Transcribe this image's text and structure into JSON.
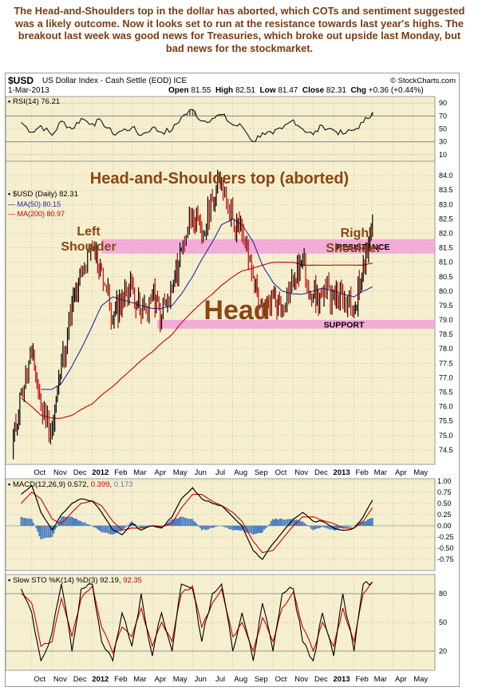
{
  "caption": "The Head-and-Shoulders top in the dollar has aborted, which COTs and sentiment suggested was a likely outcome. Now it looks set to run at the resistance towards last year's highs. The breakout last week was good news for Treasuries, which broke out upside last Monday, but bad news for the stockmarket.",
  "header": {
    "symbol": "$USD",
    "description": "US Dollar Index - Cash Settle (EOD) ICE",
    "source": "© StockCharts.com",
    "date": "1-Mar-2013",
    "open_label": "Open",
    "open": "81.55",
    "high_label": "High",
    "high": "82.51",
    "low_label": "Low",
    "low": "81.47",
    "close_label": "Close",
    "close": "82.31",
    "chg_label": "Chg",
    "chg": "+0.36 (+0.44%)"
  },
  "colors": {
    "panel_bg": "#f6efcf",
    "caption": "#7a3b10",
    "annotation": "#8b4513",
    "band": "#f2a0d8",
    "price_up": "#000000",
    "price_down": "#cc0000",
    "ma50": "#1f2f9f",
    "ma200": "#cc0000",
    "histogram": "#4a7fc0"
  },
  "chart_data": [
    {
      "type": "line",
      "panel": "rsi",
      "label": "RSI(14)",
      "value": "76.21",
      "y_ticks": [
        "90",
        "70",
        "50",
        "30",
        "10"
      ],
      "ylim": [
        0,
        100
      ],
      "x": [
        "2011-09-15",
        "2011-10-01",
        "2011-10-15",
        "2011-11-01",
        "2011-11-15",
        "2011-12-01",
        "2011-12-15",
        "2012-01-01",
        "2012-01-15",
        "2012-02-01",
        "2012-02-15",
        "2012-03-01",
        "2012-03-15",
        "2012-04-01",
        "2012-04-15",
        "2012-05-01",
        "2012-05-15",
        "2012-06-01",
        "2012-06-15",
        "2012-07-01",
        "2012-07-15",
        "2012-08-01",
        "2012-08-15",
        "2012-09-01",
        "2012-09-15",
        "2012-10-01",
        "2012-10-15",
        "2012-11-01",
        "2012-11-15",
        "2012-12-01",
        "2012-12-15",
        "2013-01-01",
        "2013-01-15",
        "2013-02-01",
        "2013-02-15",
        "2013-03-01"
      ],
      "values": [
        60,
        45,
        55,
        40,
        62,
        50,
        66,
        58,
        62,
        42,
        47,
        52,
        40,
        52,
        45,
        48,
        68,
        80,
        62,
        66,
        72,
        56,
        54,
        30,
        44,
        42,
        50,
        64,
        50,
        41,
        55,
        48,
        42,
        48,
        60,
        76
      ]
    },
    {
      "type": "line",
      "panel": "price",
      "title": "Head-and-Shoulders top (aborted)",
      "label": "$USD (Daily)",
      "value": "82.31",
      "y_ticks": [
        "84.0",
        "83.5",
        "83.0",
        "82.5",
        "82.0",
        "81.5",
        "81.0",
        "80.5",
        "80.0",
        "79.5",
        "79.0",
        "78.5",
        "78.0",
        "77.5",
        "77.0",
        "76.5",
        "76.0",
        "75.5",
        "75.0",
        "74.5"
      ],
      "ylim": [
        74.0,
        84.5
      ],
      "x": [
        "2011-09-01",
        "2011-09-15",
        "2011-10-01",
        "2011-10-15",
        "2011-11-01",
        "2011-11-15",
        "2011-12-01",
        "2011-12-15",
        "2012-01-01",
        "2012-01-15",
        "2012-02-01",
        "2012-02-15",
        "2012-03-01",
        "2012-03-15",
        "2012-04-01",
        "2012-04-15",
        "2012-05-01",
        "2012-05-15",
        "2012-06-01",
        "2012-06-15",
        "2012-07-01",
        "2012-07-15",
        "2012-08-01",
        "2012-08-15",
        "2012-09-01",
        "2012-09-15",
        "2012-10-01",
        "2012-10-15",
        "2012-11-01",
        "2012-11-15",
        "2012-12-01",
        "2012-12-15",
        "2013-01-01",
        "2013-01-15",
        "2013-02-01",
        "2013-02-15",
        "2013-03-01"
      ],
      "series": [
        {
          "name": "$USD (Daily)",
          "values": [
            74.5,
            76.5,
            77.8,
            76.0,
            75.2,
            77.5,
            79.5,
            80.5,
            81.4,
            80.8,
            79.0,
            79.8,
            80.2,
            79.2,
            79.8,
            79.2,
            80.0,
            81.5,
            82.8,
            81.8,
            83.2,
            83.8,
            82.5,
            82.0,
            80.5,
            79.2,
            79.8,
            79.5,
            80.3,
            81.0,
            79.8,
            79.8,
            80.0,
            79.6,
            79.3,
            81.0,
            82.31
          ]
        },
        {
          "name": "MA(50)",
          "label_value": "80.15",
          "values": [
            null,
            null,
            null,
            76.6,
            76.6,
            76.8,
            77.4,
            78.0,
            78.8,
            79.5,
            79.8,
            79.7,
            79.6,
            79.5,
            79.4,
            79.4,
            79.5,
            79.9,
            80.5,
            81.1,
            81.7,
            82.3,
            82.5,
            82.3,
            81.7,
            80.9,
            80.3,
            80.0,
            79.9,
            79.9,
            80.0,
            80.1,
            80.0,
            79.9,
            79.8,
            80.0,
            80.15
          ]
        },
        {
          "name": "MA(200)",
          "label_value": "80.97",
          "values": [
            null,
            76.3,
            76.0,
            75.7,
            75.6,
            75.6,
            75.7,
            75.9,
            76.1,
            76.4,
            76.7,
            77.0,
            77.3,
            77.6,
            77.9,
            78.2,
            78.5,
            78.9,
            79.3,
            79.6,
            79.9,
            80.2,
            80.5,
            80.7,
            80.8,
            80.9,
            81.0,
            81.0,
            81.0,
            80.9,
            80.9,
            80.9,
            80.9,
            80.9,
            80.9,
            80.9,
            80.97
          ]
        }
      ],
      "bands": [
        {
          "label": "RESISTANCE",
          "from": 81.3,
          "to": 81.8
        },
        {
          "label": "SUPPORT",
          "from": 78.7,
          "to": 79.0
        }
      ],
      "annotations": [
        "Left Shoulder",
        "Head",
        "Right Shoulder"
      ]
    },
    {
      "type": "line",
      "panel": "macd",
      "label": "MACD(12,26,9)",
      "values_text": [
        "0.572",
        "0.399",
        "0.173"
      ],
      "y_ticks": [
        "1.00",
        "0.75",
        "0.50",
        "0.25",
        "0.00",
        "-0.25",
        "-0.50",
        "-0.75"
      ],
      "ylim": [
        -1.0,
        1.05
      ],
      "x": [
        "2011-09-15",
        "2011-10-01",
        "2011-10-15",
        "2011-11-01",
        "2011-11-15",
        "2011-12-01",
        "2011-12-15",
        "2012-01-01",
        "2012-01-15",
        "2012-02-01",
        "2012-02-15",
        "2012-03-01",
        "2012-03-15",
        "2012-04-01",
        "2012-04-15",
        "2012-05-01",
        "2012-05-15",
        "2012-06-01",
        "2012-06-15",
        "2012-07-01",
        "2012-07-15",
        "2012-08-01",
        "2012-08-15",
        "2012-09-01",
        "2012-09-15",
        "2012-10-01",
        "2012-10-15",
        "2012-11-01",
        "2012-11-15",
        "2012-12-01",
        "2012-12-15",
        "2013-01-01",
        "2013-01-15",
        "2013-02-01",
        "2013-02-15",
        "2013-03-01"
      ],
      "series": [
        {
          "name": "MACD",
          "values": [
            0.7,
            0.9,
            0.3,
            -0.1,
            0.25,
            0.5,
            0.6,
            0.55,
            0.3,
            -0.1,
            -0.2,
            0.05,
            -0.1,
            0.0,
            -0.05,
            0.2,
            0.6,
            0.85,
            0.6,
            0.5,
            0.45,
            0.2,
            0.0,
            -0.55,
            -0.75,
            -0.4,
            -0.15,
            0.15,
            0.3,
            0.1,
            0.1,
            -0.05,
            -0.1,
            -0.05,
            0.2,
            0.572
          ]
        },
        {
          "name": "Signal",
          "values": [
            0.5,
            0.75,
            0.6,
            0.15,
            0.05,
            0.3,
            0.5,
            0.55,
            0.45,
            0.1,
            -0.1,
            -0.05,
            -0.05,
            0.0,
            -0.02,
            0.05,
            0.4,
            0.7,
            0.7,
            0.55,
            0.45,
            0.3,
            0.1,
            -0.35,
            -0.6,
            -0.55,
            -0.3,
            0.0,
            0.2,
            0.2,
            0.12,
            0.05,
            -0.05,
            -0.05,
            0.1,
            0.399
          ]
        },
        {
          "name": "Histogram",
          "values": [
            0.2,
            0.15,
            -0.3,
            -0.25,
            0.2,
            0.2,
            0.1,
            0.0,
            -0.15,
            -0.2,
            -0.1,
            0.1,
            -0.05,
            0.0,
            -0.03,
            0.15,
            0.2,
            0.15,
            -0.1,
            -0.05,
            0.0,
            -0.1,
            -0.1,
            -0.2,
            -0.15,
            0.15,
            0.15,
            0.15,
            0.1,
            -0.1,
            -0.02,
            -0.1,
            -0.05,
            0.0,
            0.1,
            0.173
          ]
        }
      ]
    },
    {
      "type": "line",
      "panel": "sto",
      "label": "Slow STO %K(14) %D(3)",
      "values_text": [
        "92.19",
        "92.35"
      ],
      "y_ticks": [
        "80",
        "50",
        "20"
      ],
      "ylim": [
        0,
        100
      ],
      "x": [
        "2011-09-15",
        "2011-10-01",
        "2011-10-15",
        "2011-11-01",
        "2011-11-15",
        "2011-12-01",
        "2011-12-15",
        "2012-01-01",
        "2012-01-15",
        "2012-02-01",
        "2012-02-15",
        "2012-03-01",
        "2012-03-15",
        "2012-04-01",
        "2012-04-15",
        "2012-05-01",
        "2012-05-15",
        "2012-06-01",
        "2012-06-15",
        "2012-07-01",
        "2012-07-15",
        "2012-08-01",
        "2012-08-15",
        "2012-09-01",
        "2012-09-15",
        "2012-10-01",
        "2012-10-15",
        "2012-11-01",
        "2012-11-15",
        "2012-12-01",
        "2012-12-15",
        "2013-01-01",
        "2013-01-15",
        "2013-02-01",
        "2013-02-15",
        "2013-03-01"
      ],
      "series": [
        {
          "name": "%K",
          "values": [
            85,
            60,
            10,
            40,
            90,
            20,
            85,
            90,
            30,
            10,
            60,
            25,
            80,
            15,
            60,
            20,
            90,
            85,
            30,
            80,
            90,
            20,
            60,
            10,
            70,
            20,
            80,
            85,
            30,
            10,
            60,
            15,
            80,
            20,
            90,
            92.19
          ]
        },
        {
          "name": "%D",
          "values": [
            80,
            70,
            25,
            30,
            75,
            35,
            75,
            88,
            45,
            18,
            45,
            35,
            65,
            25,
            50,
            30,
            80,
            88,
            45,
            70,
            85,
            35,
            50,
            20,
            55,
            30,
            65,
            82,
            45,
            20,
            50,
            25,
            65,
            30,
            80,
            92.35
          ]
        }
      ]
    }
  ],
  "x_axis": {
    "labels": [
      "Oct",
      "Nov",
      "Dec",
      "2012",
      "Feb",
      "Mar",
      "Apr",
      "May",
      "Jun",
      "Jul",
      "Aug",
      "Sep",
      "Oct",
      "Nov",
      "Dec",
      "2013",
      "Feb",
      "Mar",
      "Apr",
      "May"
    ],
    "bold": [
      "2012",
      "2013"
    ]
  }
}
